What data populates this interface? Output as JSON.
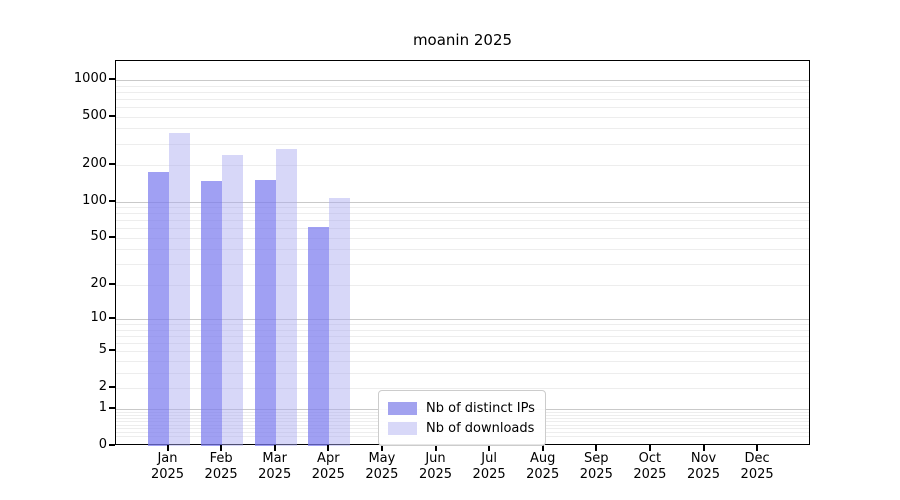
{
  "title": "moanin 2025",
  "chart_data": {
    "type": "bar",
    "title": "moanin 2025",
    "year": "2025",
    "categories": [
      "Jan",
      "Feb",
      "Mar",
      "Apr",
      "May",
      "Jun",
      "Jul",
      "Aug",
      "Sep",
      "Oct",
      "Nov",
      "Dec"
    ],
    "series": [
      {
        "name": "Nb of distinct IPs",
        "color": "rgba(124,124,238,0.72)",
        "legend_color": "#a2a2ef",
        "values": [
          176,
          147,
          151,
          62,
          0,
          0,
          0,
          0,
          0,
          0,
          0,
          0
        ]
      },
      {
        "name": "Nb of downloads",
        "color": "rgba(170,170,240,0.47)",
        "legend_color": "#d8d8f8",
        "values": [
          370,
          242,
          272,
          107,
          0,
          0,
          0,
          0,
          0,
          0,
          0,
          0
        ]
      }
    ],
    "y_ticks": [
      0,
      1,
      2,
      5,
      10,
      20,
      50,
      100,
      200,
      500,
      1000
    ],
    "y_scale": "log1p",
    "ylim": [
      0,
      1433
    ],
    "grid": true,
    "legend_position": "bottom-center"
  },
  "colors": {
    "grid_major": "#c9c9c9",
    "grid_minor": "#ededed",
    "axis": "#000000",
    "background": "#ffffff"
  }
}
